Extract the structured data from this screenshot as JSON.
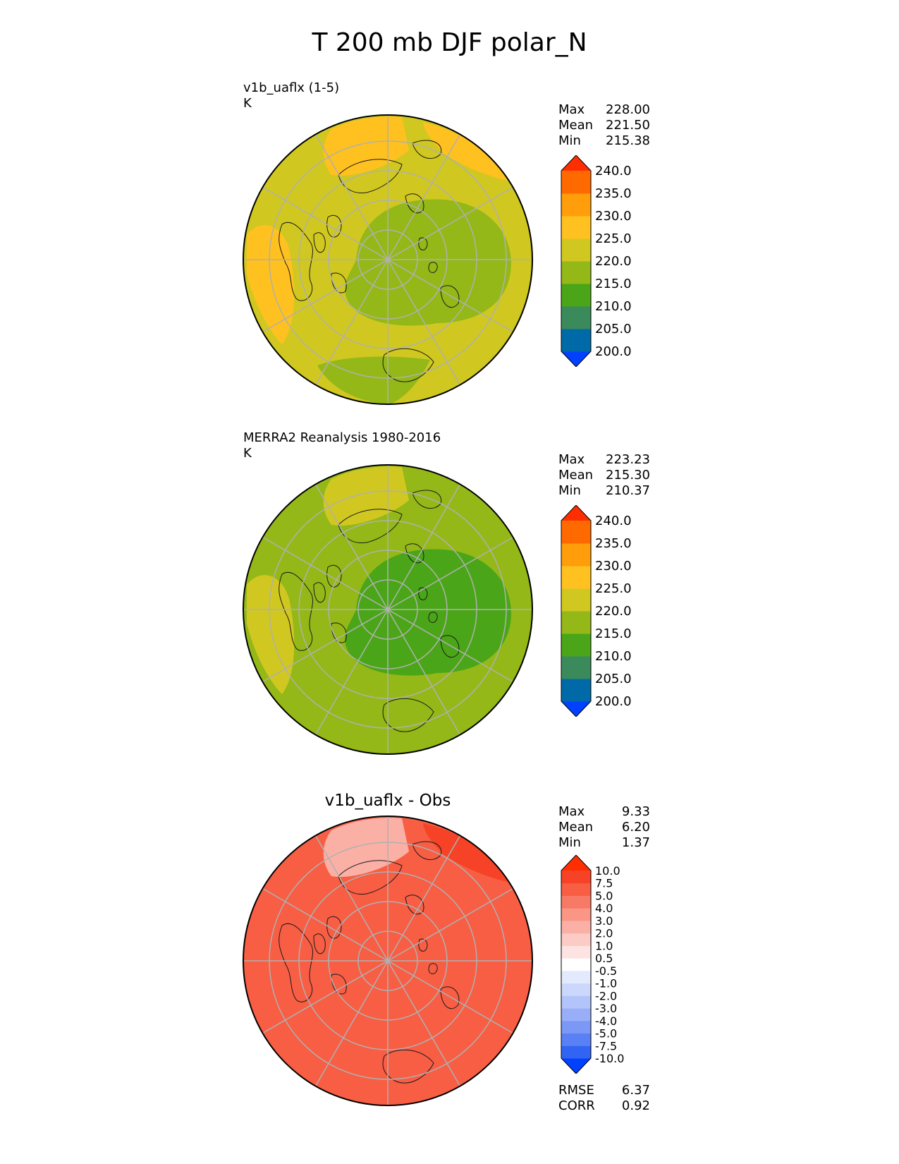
{
  "figure": {
    "title": "T 200 mb DJF polar_N"
  },
  "chart_data": [
    {
      "type": "heatmap",
      "projection": "north-polar-stereographic",
      "title": "v1b_uaflx (1-5)",
      "units": "K",
      "stats": [
        {
          "label": "Max",
          "value": "228.00"
        },
        {
          "label": "Mean",
          "value": "221.50"
        },
        {
          "label": "Min",
          "value": "215.38"
        }
      ],
      "colorbar": {
        "levels": [
          "200.0",
          "205.0",
          "210.0",
          "215.0",
          "220.0",
          "225.0",
          "230.0",
          "235.0",
          "240.0"
        ],
        "colors": [
          "#0041ff",
          "#006aa8",
          "#3a8a5c",
          "#4aa618",
          "#94b818",
          "#d0c820",
          "#ffc11f",
          "#ff9d0a",
          "#ff6a00",
          "#ff2e00"
        ],
        "extend": "both"
      },
      "field": {
        "base_value": 222,
        "regions": [
          {
            "name": "central-arctic-eurasia",
            "value": 217
          },
          {
            "name": "north-america-west",
            "value": 226
          },
          {
            "name": "atlantic-top",
            "value": 226
          },
          {
            "name": "pacific-right",
            "value": 226
          },
          {
            "name": "bottom-sector",
            "value": 218
          }
        ]
      }
    },
    {
      "type": "heatmap",
      "projection": "north-polar-stereographic",
      "title": "MERRA2 Reanalysis 1980-2016",
      "units": "K",
      "stats": [
        {
          "label": "Max",
          "value": "223.23"
        },
        {
          "label": "Mean",
          "value": "215.30"
        },
        {
          "label": "Min",
          "value": "210.37"
        }
      ],
      "colorbar": {
        "levels": [
          "200.0",
          "205.0",
          "210.0",
          "215.0",
          "220.0",
          "225.0",
          "230.0",
          "235.0",
          "240.0"
        ],
        "colors": [
          "#0041ff",
          "#006aa8",
          "#3a8a5c",
          "#4aa618",
          "#94b818",
          "#d0c820",
          "#ffc11f",
          "#ff9d0a",
          "#ff6a00",
          "#ff2e00"
        ],
        "extend": "both"
      },
      "field": {
        "base_value": 217,
        "regions": [
          {
            "name": "central-arctic-eurasia",
            "value": 212
          },
          {
            "name": "north-america-west",
            "value": 221
          },
          {
            "name": "atlantic-top",
            "value": 221
          }
        ]
      }
    },
    {
      "type": "heatmap",
      "projection": "north-polar-stereographic",
      "title": "v1b_uaflx - Obs",
      "stats": [
        {
          "label": "Max",
          "value": "9.33"
        },
        {
          "label": "Mean",
          "value": "6.20"
        },
        {
          "label": "Min",
          "value": "1.37"
        }
      ],
      "metrics": [
        {
          "label": "RMSE",
          "value": "6.37"
        },
        {
          "label": "CORR",
          "value": "0.92"
        }
      ],
      "colorbar": {
        "levels": [
          "-10.0",
          "-7.5",
          "-5.0",
          "-4.0",
          "-3.0",
          "-2.0",
          "-1.0",
          "-0.5",
          "0.5",
          "1.0",
          "2.0",
          "3.0",
          "4.0",
          "5.0",
          "7.5",
          "10.0"
        ],
        "colors": [
          "#0041ff",
          "#3164f2",
          "#5a80f5",
          "#7b98f6",
          "#98aff8",
          "#b3c4fa",
          "#cbd7fb",
          "#e3eafd",
          "#ffffff",
          "#fde4e2",
          "#fccbc5",
          "#fbb0a6",
          "#f99686",
          "#f77a66",
          "#f75e44",
          "#f64226",
          "#ff2e00"
        ],
        "extend": "both"
      },
      "field": {
        "base_value": 6.2,
        "regions": [
          {
            "name": "atlantic-top",
            "value": 2.0
          },
          {
            "name": "pacific-right",
            "value": 8.0
          },
          {
            "name": "bottom-sector",
            "value": 7.0
          },
          {
            "name": "central-arctic",
            "value": 5.0
          }
        ]
      }
    }
  ]
}
